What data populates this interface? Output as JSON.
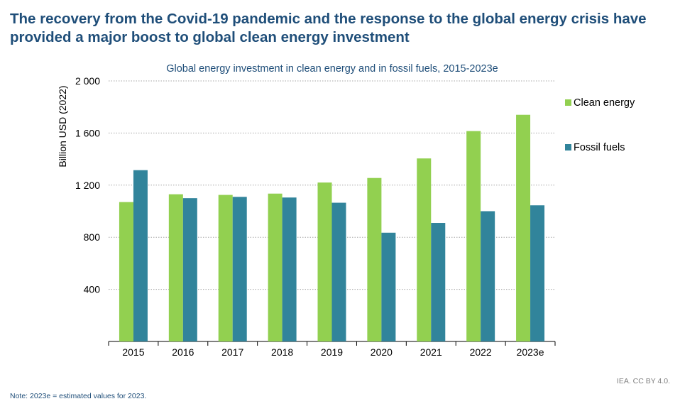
{
  "header": {
    "title": "The recovery from the Covid-19 pandemic and the response to the global energy crisis have provided a major boost to global clean energy investment"
  },
  "footer": {
    "note": "Note:  2023e = estimated values for 2023.",
    "credit": "IEA. CC BY 4.0."
  },
  "colors": {
    "clean": "#92d050",
    "fossil": "#31849b",
    "grid": "#a6a6a6",
    "axis": "#000000",
    "title": "#1f4e79"
  },
  "chart_data": {
    "type": "bar",
    "title": "Global energy investment in clean energy and in fossil fuels, 2015-2023e",
    "xlabel": "",
    "ylabel": "Billion USD (2022)",
    "ylim": [
      0,
      2000
    ],
    "yticks": [
      400,
      800,
      1200,
      1600,
      2000
    ],
    "ytick_labels": [
      "400",
      "800",
      "1 200",
      "1 600",
      "2 000"
    ],
    "grid": true,
    "legend_position": "right",
    "categories": [
      "2015",
      "2016",
      "2017",
      "2018",
      "2019",
      "2020",
      "2021",
      "2022",
      "2023e"
    ],
    "series": [
      {
        "name": "Clean energy",
        "color": "#92d050",
        "values": [
          1070,
          1130,
          1125,
          1135,
          1220,
          1255,
          1405,
          1615,
          1740
        ]
      },
      {
        "name": "Fossil fuels",
        "color": "#31849b",
        "values": [
          1315,
          1100,
          1110,
          1105,
          1065,
          835,
          910,
          1000,
          1045
        ]
      }
    ]
  }
}
